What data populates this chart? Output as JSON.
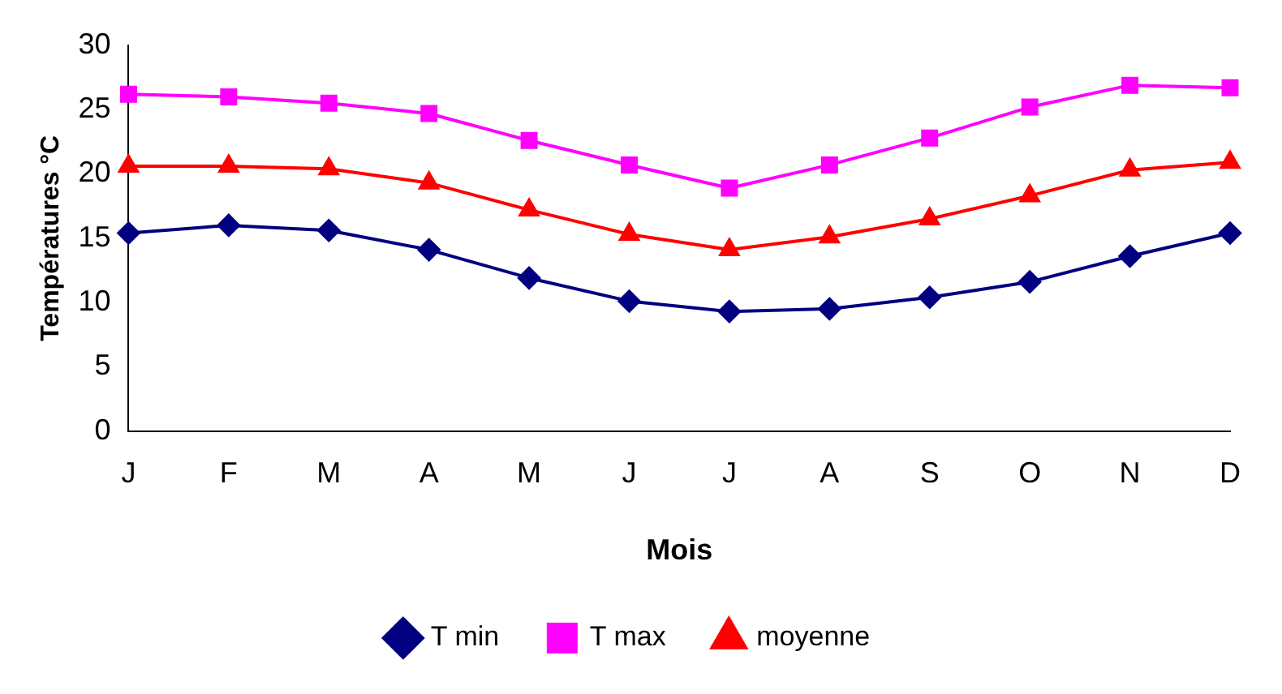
{
  "chart_data": {
    "type": "line",
    "xlabel": "Mois",
    "ylabel": "Températures °C",
    "categories": [
      "J",
      "F",
      "M",
      "A",
      "M",
      "J",
      "J",
      "A",
      "S",
      "O",
      "N",
      "D"
    ],
    "series": [
      {
        "name": "T min",
        "color": "#000080",
        "marker": "diamond",
        "values": [
          15.4,
          16.0,
          15.6,
          14.1,
          11.9,
          10.1,
          9.3,
          9.5,
          10.4,
          11.6,
          13.6,
          15.4
        ]
      },
      {
        "name": "T max",
        "color": "#ff00ff",
        "marker": "square",
        "values": [
          26.2,
          26.0,
          25.5,
          24.7,
          22.6,
          20.7,
          18.9,
          20.7,
          22.8,
          25.2,
          26.9,
          26.7
        ]
      },
      {
        "name": "moyenne",
        "color": "#ff0000",
        "marker": "triangle",
        "values": [
          20.6,
          20.6,
          20.4,
          19.3,
          17.2,
          15.3,
          14.1,
          15.1,
          16.5,
          18.3,
          20.3,
          20.9
        ]
      }
    ],
    "ylim": [
      0,
      30
    ],
    "yticks": [
      0,
      5,
      10,
      15,
      20,
      25,
      30
    ],
    "grid": false,
    "legend": "bottom"
  }
}
